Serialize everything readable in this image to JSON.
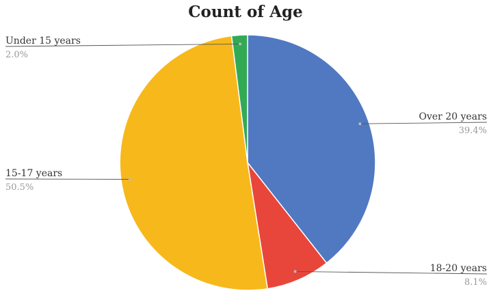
{
  "chart_data": {
    "type": "pie",
    "title": "Count of Age",
    "slices": [
      {
        "label": "Over 20 years",
        "value": 39.4,
        "percent_label": "39.4%",
        "color": "#5079c1"
      },
      {
        "label": "18-20 years",
        "value": 8.1,
        "percent_label": "8.1%",
        "color": "#e8463a"
      },
      {
        "label": "15-17 years",
        "value": 50.5,
        "percent_label": "50.5%",
        "color": "#f7b81b"
      },
      {
        "label": "Under 15 years",
        "value": 2.0,
        "percent_label": "2.0%",
        "color": "#32aa55"
      }
    ],
    "start_angle": "12 o'clock",
    "direction": "clockwise",
    "legend": "none",
    "data_labels": "outside with leader lines"
  }
}
